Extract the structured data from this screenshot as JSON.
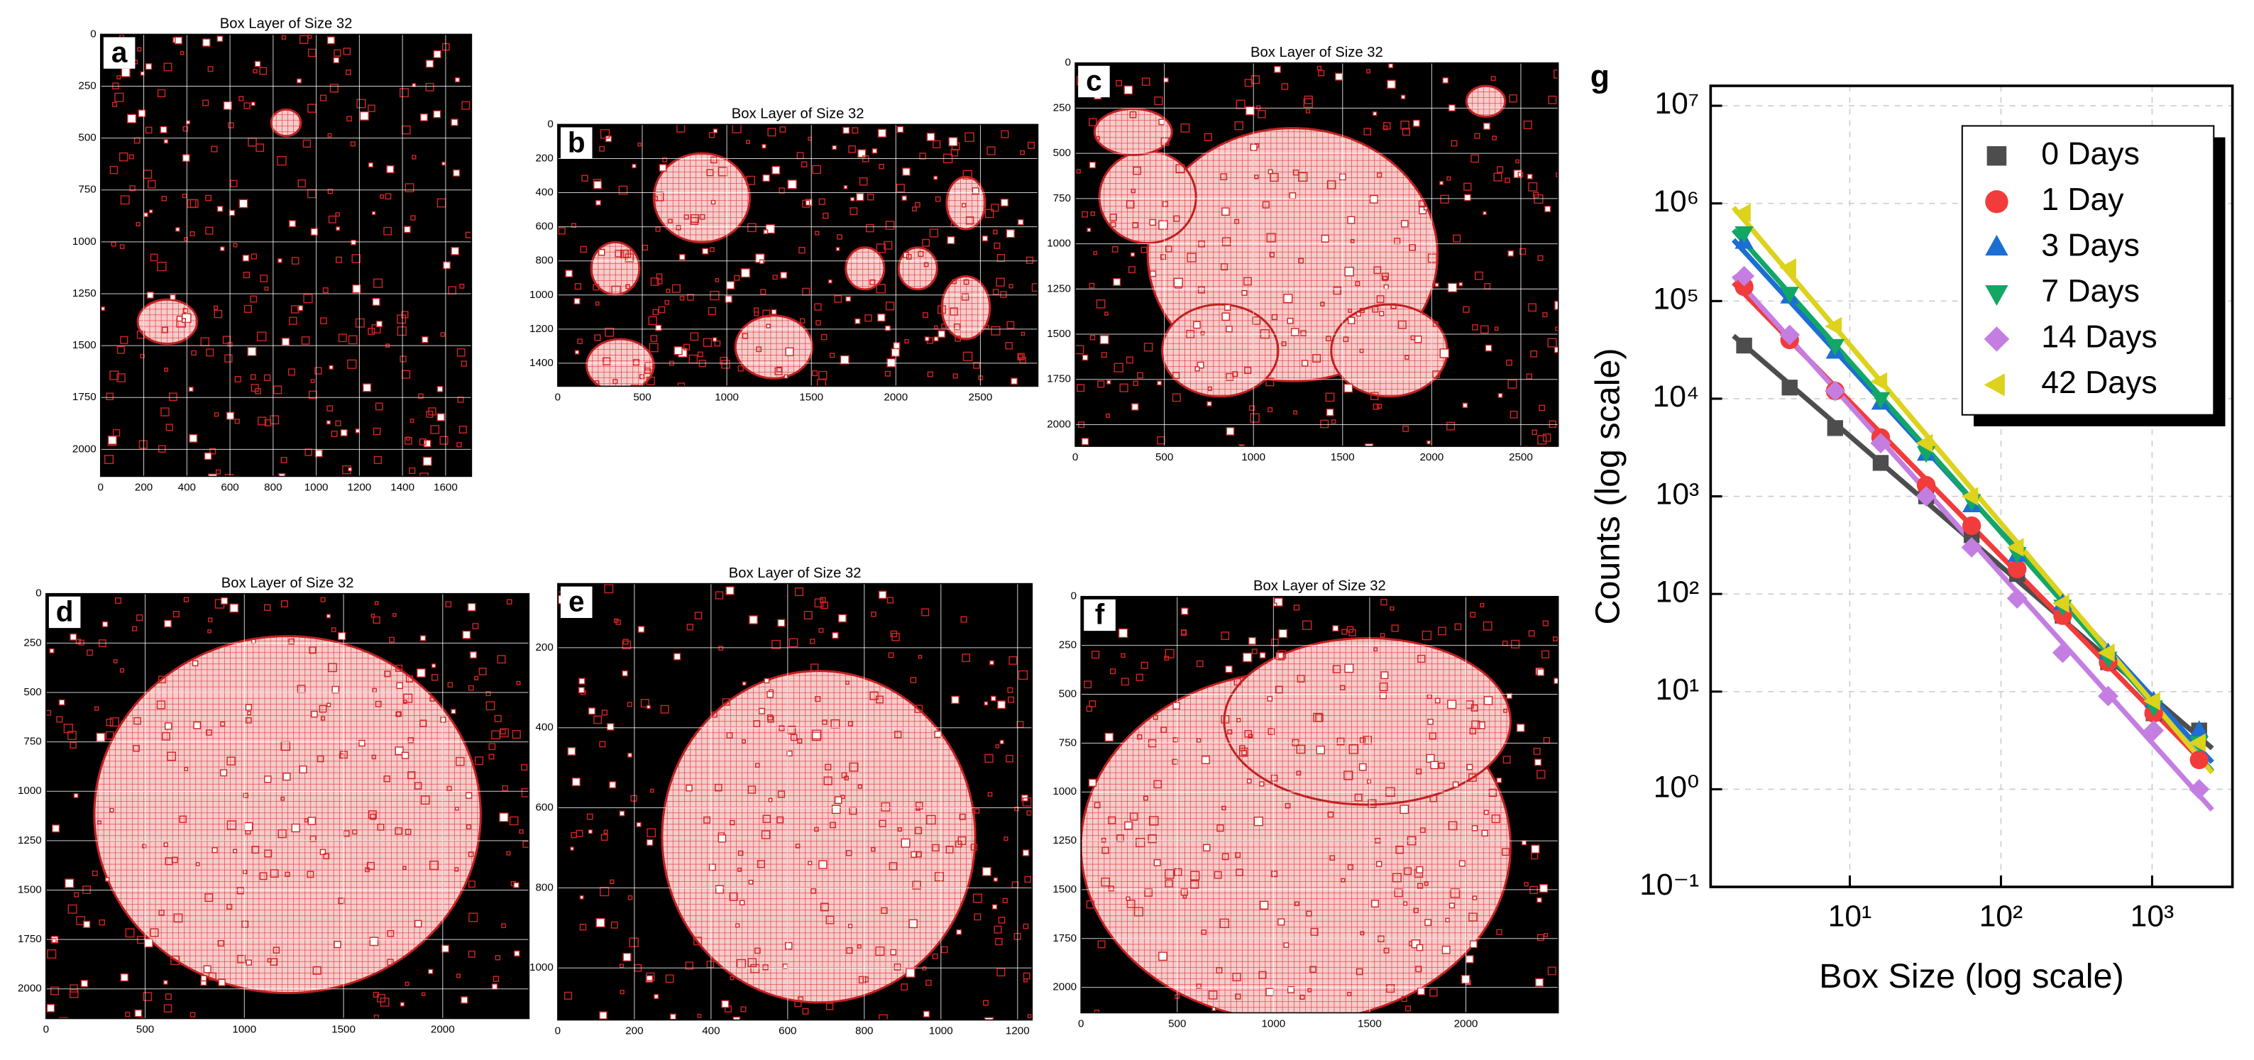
{
  "chart_data": [
    {
      "type": "image",
      "label": "a",
      "title": "Box Layer of Size 32",
      "xlim": [
        0,
        1720
      ],
      "ylim": [
        0,
        2130
      ],
      "invert_y": true,
      "grid": true,
      "xticks": [
        0,
        200,
        400,
        600,
        800,
        1000,
        1200,
        1400,
        1600
      ],
      "yticks": [
        0,
        250,
        500,
        750,
        1000,
        1250,
        1500,
        1750,
        2000
      ]
    },
    {
      "type": "image",
      "label": "b",
      "title": "Box Layer of Size 32",
      "xlim": [
        0,
        2840
      ],
      "ylim": [
        0,
        1535
      ],
      "invert_y": true,
      "grid": true,
      "xticks": [
        0,
        500,
        1000,
        1500,
        2000,
        2500
      ],
      "yticks": [
        0,
        200,
        400,
        600,
        800,
        1000,
        1200,
        1400
      ]
    },
    {
      "type": "image",
      "label": "c",
      "title": "Box Layer of Size 32",
      "xlim": [
        0,
        2710
      ],
      "ylim": [
        0,
        2120
      ],
      "invert_y": true,
      "grid": true,
      "xticks": [
        0,
        500,
        1000,
        1500,
        2000,
        2500
      ],
      "yticks": [
        0,
        250,
        500,
        750,
        1000,
        1250,
        1500,
        1750,
        2000
      ]
    },
    {
      "type": "image",
      "label": "d",
      "title": "Box Layer of Size 32",
      "xlim": [
        0,
        2435
      ],
      "ylim": [
        0,
        2150
      ],
      "invert_y": true,
      "grid": true,
      "xticks": [
        0,
        500,
        1000,
        1500,
        2000
      ],
      "yticks": [
        0,
        250,
        500,
        750,
        1000,
        1250,
        1500,
        1750,
        2000
      ]
    },
    {
      "type": "image",
      "label": "e",
      "title": "Box Layer of Size 32",
      "xlim": [
        0,
        1238
      ],
      "ylim": [
        40,
        1130
      ],
      "invert_y": true,
      "grid": true,
      "xticks": [
        0,
        200,
        400,
        600,
        800,
        1000,
        1200
      ],
      "yticks": [
        200,
        400,
        600,
        800,
        1000
      ]
    },
    {
      "type": "image",
      "label": "f",
      "title": "Box Layer of Size 32",
      "xlim": [
        0,
        2480
      ],
      "ylim": [
        0,
        2130
      ],
      "invert_y": true,
      "grid": true,
      "xticks": [
        0,
        500,
        1000,
        1500,
        2000
      ],
      "yticks": [
        0,
        250,
        500,
        750,
        1000,
        1250,
        1500,
        1750,
        2000
      ]
    },
    {
      "type": "scatter",
      "label": "g",
      "x_label": "Box Size (log scale)",
      "y_label": "Counts (log scale)",
      "xscale": "log",
      "yscale": "log",
      "grid": true,
      "legend": "upper right",
      "fit_lines": true,
      "xlim": [
        1.2,
        3400
      ],
      "ylim": [
        0.1,
        16000000
      ],
      "xticks": [
        {
          "value": 10,
          "label": "10¹"
        },
        {
          "value": 100,
          "label": "10²"
        },
        {
          "value": 1000,
          "label": "10³"
        }
      ],
      "yticks": [
        {
          "value": 0.1,
          "label": "10⁻¹"
        },
        {
          "value": 1,
          "label": "10⁰"
        },
        {
          "value": 10,
          "label": "10¹"
        },
        {
          "value": 100,
          "label": "10²"
        },
        {
          "value": 1000,
          "label": "10³"
        },
        {
          "value": 10000,
          "label": "10⁴"
        },
        {
          "value": 100000,
          "label": "10⁵"
        },
        {
          "value": 1000000,
          "label": "10⁶"
        },
        {
          "value": 10000000,
          "label": "10⁷"
        }
      ],
      "x": [
        2,
        4,
        8,
        16,
        32,
        64,
        128,
        256,
        512,
        1024,
        2048
      ],
      "series": [
        {
          "name": "0 Days",
          "color": "#4d4d4d",
          "marker": "square",
          "values": [
            35000,
            13000,
            5000,
            2200,
            1000,
            400,
            160,
            60,
            20,
            6,
            4
          ]
        },
        {
          "name": "1 Day",
          "color": "#f23b3b",
          "marker": "circle",
          "values": [
            140000,
            40000,
            12000,
            4000,
            1300,
            500,
            180,
            60,
            20,
            6,
            2
          ]
        },
        {
          "name": "3 Days",
          "color": "#1c6ed3",
          "marker": "triangle-up",
          "values": [
            400000,
            110000,
            30000,
            9000,
            2700,
            800,
            250,
            80,
            25,
            8,
            4
          ]
        },
        {
          "name": "7 Days",
          "color": "#12a765",
          "marker": "triangle-down",
          "values": [
            500000,
            120000,
            35000,
            10000,
            2800,
            900,
            260,
            75,
            22,
            7,
            3
          ]
        },
        {
          "name": "14 Days",
          "color": "#c47ee2",
          "marker": "diamond",
          "values": [
            180000,
            45000,
            12000,
            3500,
            1000,
            300,
            90,
            25,
            9,
            4,
            1
          ]
        },
        {
          "name": "42 Days",
          "color": "#ddd21c",
          "marker": "triangle-left",
          "values": [
            800000,
            220000,
            55000,
            15000,
            3500,
            1000,
            300,
            80,
            25,
            8,
            3
          ]
        }
      ]
    }
  ]
}
